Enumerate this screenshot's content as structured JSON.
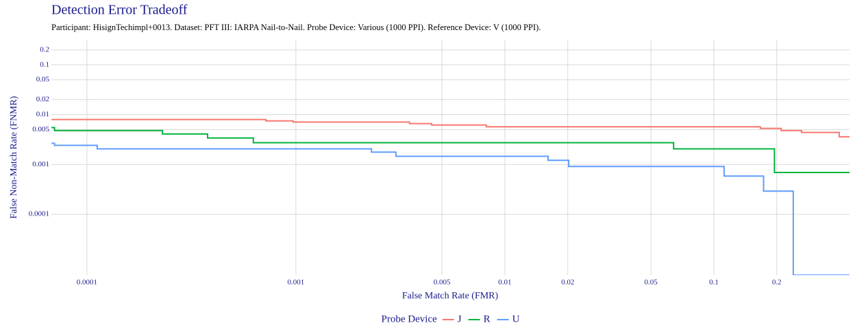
{
  "chart_data": {
    "type": "step",
    "title": "Detection Error Tradeoff",
    "subtitle": "Participant: HisignTechimpl+0013. Dataset: PFT III: IARPA Nail-to-Nail. Probe Device: Various (1000 PPI). Reference Device: V (1000 PPI).",
    "x_label": "False Match Rate (FMR)",
    "y_label": "False Non-Match Rate (FNMR)",
    "xscale": "log",
    "yscale": "log",
    "grid": true,
    "legend_position": "bottom",
    "legend_title": "Probe Device",
    "xlim": [
      6.76e-05,
      0.446
    ],
    "ylim": [
      6e-06,
      0.32
    ],
    "xticks": [
      0.0001,
      0.001,
      0.005,
      0.01,
      0.02,
      0.05,
      0.1,
      0.2
    ],
    "yticks": [
      0.0001,
      0.001,
      0.005,
      0.01,
      0.02,
      0.05,
      0.1,
      0.2
    ],
    "series": [
      {
        "name": "J",
        "color": "#f8766d",
        "x": [
          6.76e-05,
          0.000718,
          0.00097,
          0.0035,
          0.00446,
          0.00815,
          0.167,
          0.21,
          0.263,
          0.398,
          0.446
        ],
        "values": [
          0.008,
          0.0075,
          0.0071,
          0.0066,
          0.0062,
          0.0057,
          0.0053,
          0.0048,
          0.0044,
          0.0036,
          0.0036
        ]
      },
      {
        "name": "R",
        "color": "#00b33c",
        "x": [
          6.76e-05,
          7e-05,
          0.00023,
          0.000378,
          0.000626,
          0.0642,
          0.195,
          0.446
        ],
        "values": [
          0.0055,
          0.0048,
          0.0041,
          0.0034,
          0.00274,
          0.00206,
          0.00069,
          0.00069
        ]
      },
      {
        "name": "U",
        "color": "#619cff",
        "x": [
          6.76e-05,
          7e-05,
          0.000112,
          0.0023,
          0.00301,
          0.0161,
          0.0202,
          0.112,
          0.173,
          0.24,
          0.446
        ],
        "values": [
          0.00266,
          0.00242,
          0.00206,
          0.00177,
          0.00146,
          0.00121,
          0.00091,
          0.000585,
          0.000292,
          6e-06,
          6e-06
        ]
      }
    ]
  }
}
